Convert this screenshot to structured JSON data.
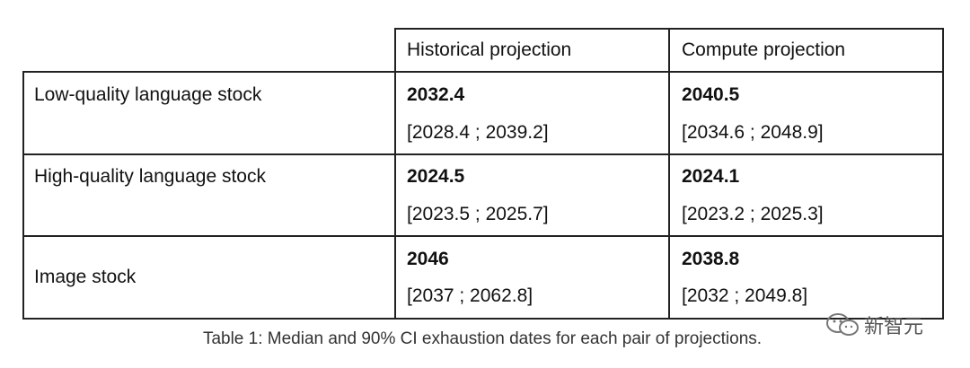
{
  "table": {
    "header": [
      "Historical projection",
      "Compute projection"
    ],
    "rows": [
      {
        "label": "Low-quality language stock",
        "historical": {
          "median": "2032.4",
          "ci": "[2028.4 ; 2039.2]"
        },
        "compute": {
          "median": "2040.5",
          "ci": "[2034.6 ; 2048.9]"
        }
      },
      {
        "label": "High-quality language stock",
        "historical": {
          "median": "2024.5",
          "ci": "[2023.5 ; 2025.7]"
        },
        "compute": {
          "median": "2024.1",
          "ci": "[2023.2 ; 2025.3]"
        }
      },
      {
        "label": "Image stock",
        "historical": {
          "median": "2046",
          "ci": "[2037 ; 2062.8]"
        },
        "compute": {
          "median": "2038.8",
          "ci": "[2032 ; 2049.8]"
        }
      }
    ],
    "caption": "Table 1: Median and 90% CI exhaustion dates for each pair of projections."
  },
  "watermark": "新智元"
}
